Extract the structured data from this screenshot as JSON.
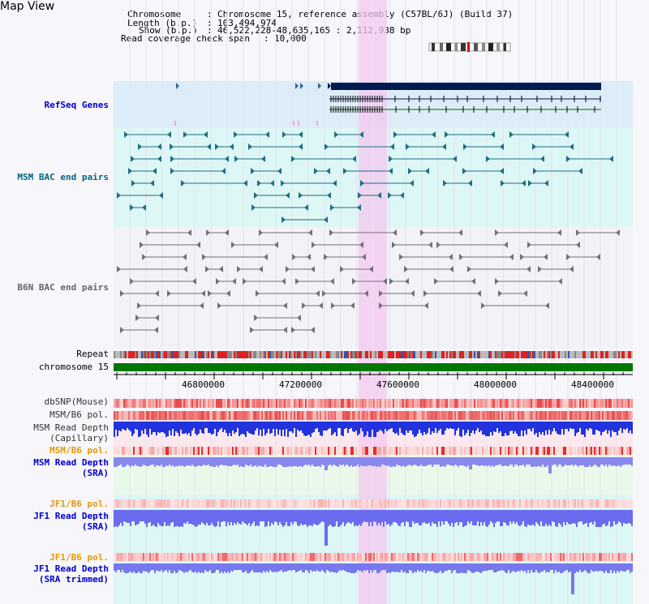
{
  "page": {
    "title": "Map View"
  },
  "header": {
    "chromosome_key": "Chromosome",
    "chromosome_val": "Chromosome 15, reference assembly (C57BL/6J) (Build 37)",
    "length_key": "Length (b.p.)",
    "length_val": "103,494,974",
    "show_key": "Show (b.p.)",
    "show_val": "46,522,228-48,635,165 : 2,112,938 bp",
    "coverage_key": "Read coverage check span",
    "coverage_val": "10,000"
  },
  "tracks": {
    "refseq": "RefSeq Genes",
    "msm_bac": "MSM BAC end pairs",
    "b6n_bac": "B6N BAC end pairs",
    "repeat": "Repeat",
    "chromosome": "chromosome 15",
    "dbsnp": "dbSNP(Mouse)",
    "msm_b6_pol_1": "MSM/B6 pol.",
    "msm_depth_cap_1": "MSM Read Depth",
    "msm_depth_cap_2": "(Capillary)",
    "msm_b6_pol_2": "MSM/B6 pol.",
    "msm_depth_sra_1": "MSM Read Depth",
    "msm_depth_sra_2": "(SRA)",
    "jf1_b6_pol_1": "JF1/B6 pol.",
    "jf1_depth_sra_1": "JF1 Read Depth",
    "jf1_depth_sra_2": "(SRA)",
    "jf1_b6_pol_2": "JF1/B6 pol.",
    "jf1_depth_trim_1": "JF1 Read Depth",
    "jf1_depth_trim_2": "(SRA trimmed)"
  },
  "axis": {
    "ticks": [
      "46800000",
      "47200000",
      "47600000",
      "48000000",
      "48400000"
    ]
  },
  "colors": {
    "refseq_label": "#0000cc",
    "msm_label": "#006680",
    "b6n_label": "#666666",
    "pol_label": "#e69900",
    "depth_label": "#0000cc",
    "highlight": "#f4c8f0",
    "chromosome_bar": "#007700"
  }
}
